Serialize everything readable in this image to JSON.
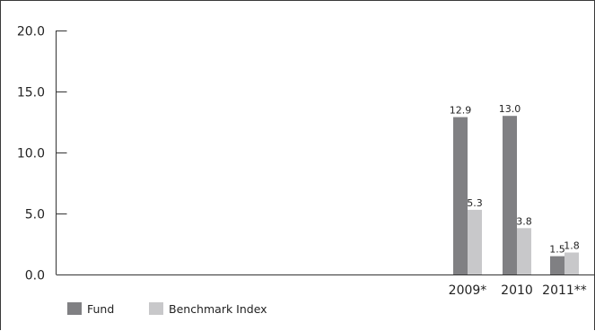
{
  "chart_data": {
    "type": "bar",
    "categories": [
      "2009*",
      "2010",
      "2011**"
    ],
    "series": [
      {
        "name": "Fund",
        "values": [
          12.9,
          13.0,
          1.5
        ],
        "labels": [
          "12.9",
          "13.0",
          "1.5"
        ],
        "color": "#808083"
      },
      {
        "name": "Benchmark Index",
        "values": [
          5.3,
          3.8,
          1.8
        ],
        "labels": [
          "5.3",
          "3.8",
          "1.8"
        ],
        "color": "#c8c8ca"
      }
    ],
    "yticks": [
      "0.0",
      "5.0",
      "10.0",
      "15.0",
      "20.0"
    ],
    "ylim": [
      0,
      20
    ],
    "grid": false,
    "legend_position": "bottom-left"
  }
}
